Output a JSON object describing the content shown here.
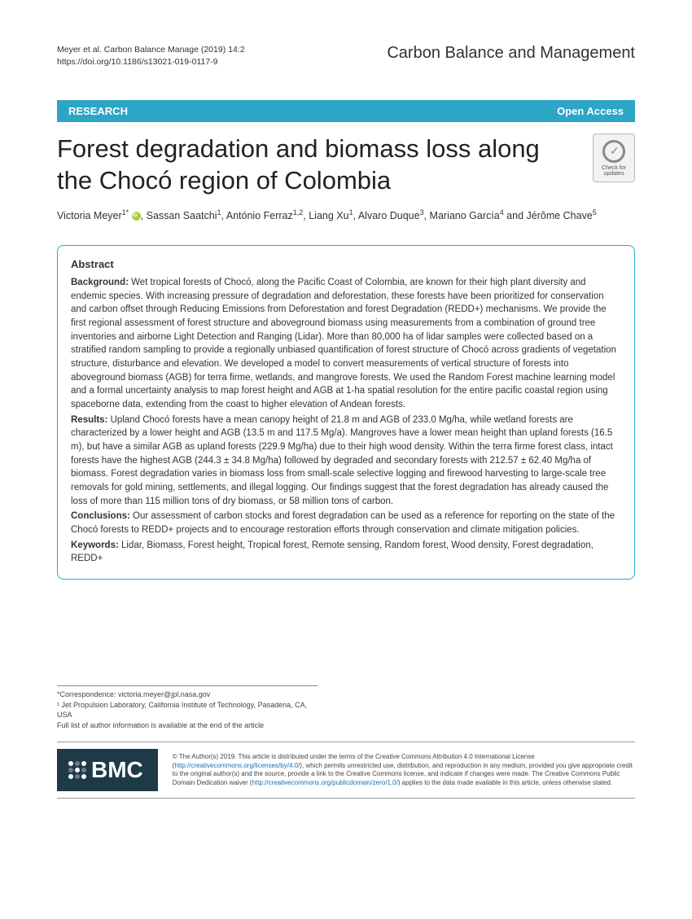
{
  "header": {
    "citation_line1": "Meyer et al. Carbon Balance Manage          (2019) 14:2",
    "doi_prefix": "https://doi.org/",
    "doi": "10.1186/s13021-019-0117-9",
    "journal": "Carbon Balance and Management"
  },
  "bar": {
    "left": "RESEARCH",
    "right": "Open Access"
  },
  "title": "Forest degradation and biomass loss along the Chocó region of Colombia",
  "update_badge": "Check for updates",
  "authors_html": "Victoria Meyer<sup>1*</sup> <span class='orcid'></span>, Sassan Saatchi<sup>1</sup>, António Ferraz<sup>1,2</sup>, Liang Xu<sup>1</sup>, Alvaro Duque<sup>3</sup>, Mariano García<sup>4</sup> and Jérôme Chave<sup>5</sup>",
  "abstract": {
    "heading": "Abstract",
    "background_label": "Background:",
    "background": " Wet tropical forests of Chocó, along the Pacific Coast of Colombia, are known for their high plant diversity and endemic species. With increasing pressure of degradation and deforestation, these forests have been prioritized for conservation and carbon offset through Reducing Emissions from Deforestation and forest Degradation (REDD+) mechanisms. We provide the first regional assessment of forest structure and aboveground biomass using measurements from a combination of ground tree inventories and airborne Light Detection and Ranging (Lidar). More than 80,000 ha of lidar samples were collected based on a stratified random sampling to provide a regionally unbiased quantification of forest structure of Chocó across gradients of vegetation structure, disturbance and elevation. We developed a model to convert measurements of vertical structure of forests into aboveground biomass (AGB) for terra firme, wetlands, and mangrove forests. We used the Random Forest machine learning model and a formal uncertainty analysis to map forest height and AGB at 1-ha spatial resolution for the entire pacific coastal region using spaceborne data, extending from the coast to higher elevation of Andean forests.",
    "results_label": "Results:",
    "results": " Upland Chocó forests have a mean canopy height of 21.8 m and AGB of 233.0 Mg/ha, while wetland forests are characterized by a lower height and AGB (13.5 m and 117.5 Mg/a). Mangroves have a lower mean height than upland forests (16.5 m), but have a similar AGB as upland forests (229.9 Mg/ha) due to their high wood density. Within the terra firme forest class, intact forests have the highest AGB (244.3 ± 34.8 Mg/ha) followed by degraded and secondary forests with 212.57 ± 62.40 Mg/ha of biomass. Forest degradation varies in biomass loss from small-scale selective logging and firewood harvesting to large-scale tree removals for gold mining, settlements, and illegal logging. Our findings suggest that the forest degradation has already caused the loss of more than 115 million tons of dry biomass, or 58 million tons of carbon.",
    "conclusions_label": "Conclusions:",
    "conclusions": " Our assessment of carbon stocks and forest degradation can be used as a reference for reporting on the state of the Chocó forests to REDD+ projects and to encourage restoration efforts through conservation and climate mitigation policies.",
    "keywords_label": "Keywords:",
    "keywords": " Lidar, Biomass, Forest height, Tropical forest, Remote sensing, Random forest, Wood density, Forest degradation, REDD+"
  },
  "footer": {
    "correspondence": "*Correspondence: victoria.meyer@jpl.nasa.gov",
    "affiliation": "¹ Jet Propulsion Laboratory, California Institute of Technology, Pasadena, CA, USA",
    "fulllist": "Full list of author information is available at the end of the article"
  },
  "license": {
    "bmc": "BMC",
    "text_pre": "© The Author(s) 2019. This article is distributed under the terms of the Creative Commons Attribution 4.0 International License (",
    "link1": "http://creativecommons.org/licenses/by/4.0/",
    "text_mid": "), which permits unrestricted use, distribution, and reproduction in any medium, provided you give appropriate credit to the original author(s) and the source, provide a link to the Creative Commons license, and indicate if changes were made. The Creative Commons Public Domain Dedication waiver (",
    "link2": "http://creativecommons.org/publicdomain/zero/1.0/",
    "text_post": ") applies to the data made available in this article, unless otherwise stated."
  },
  "colors": {
    "bar_bg": "#2ca5c7",
    "abstract_border": "#2ca5c7",
    "bmc_bg": "#1f3a47",
    "link": "#1a6fb0",
    "orcid": "#a6ce39"
  }
}
